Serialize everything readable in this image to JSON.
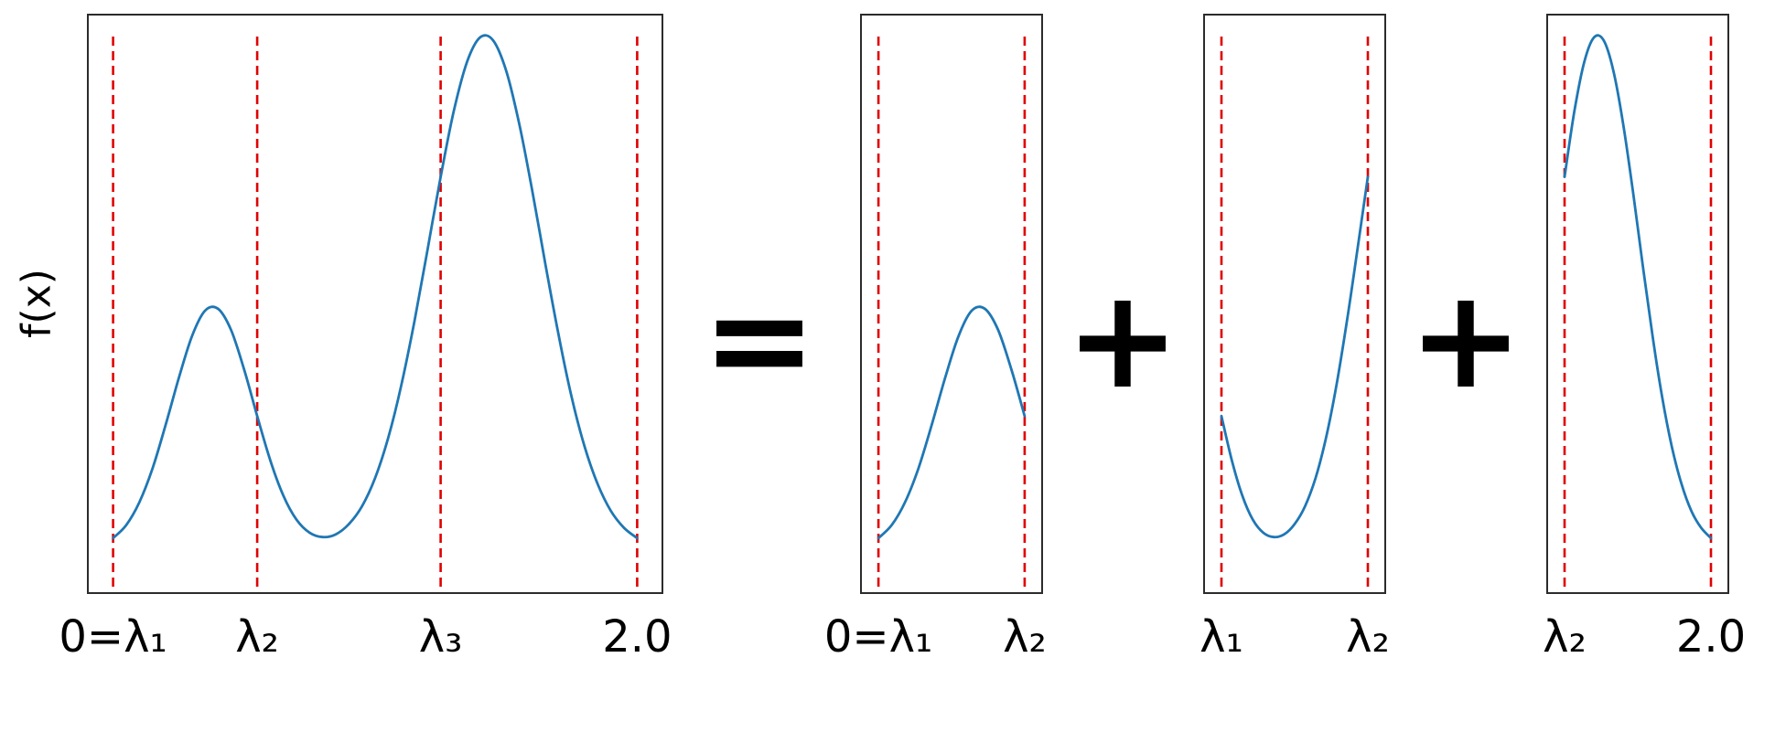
{
  "figure": {
    "ylabel": "f(x)",
    "operators": {
      "equals": "=",
      "plus1": "+",
      "plus2": "+"
    },
    "colors": {
      "curve": "#1f77b4",
      "breakline": "#e00000",
      "frame": "#2b2b2b",
      "background": "#ffffff",
      "text": "#000000"
    }
  },
  "chart_data": [
    {
      "id": "full-function",
      "type": "line",
      "title": "",
      "xlabel": "",
      "ylabel": "f(x)",
      "grid": false,
      "legend": false,
      "xlim": [
        -0.1,
        2.1
      ],
      "ylim": [
        0,
        1.07
      ],
      "line_color": "#1f77b4",
      "breakpoints": [
        0,
        0.55,
        1.25,
        2.0
      ],
      "breakpoint_style": {
        "color": "#e00000",
        "dash": "dashed"
      },
      "xticks": [
        {
          "x": 0,
          "label": "0=λ₁"
        },
        {
          "x": 0.55,
          "label": "λ₂"
        },
        {
          "x": 1.25,
          "label": "λ₃"
        },
        {
          "x": 2.0,
          "label": "2.0"
        }
      ],
      "x": [
        0,
        0.05,
        0.1,
        0.15,
        0.2,
        0.25,
        0.3,
        0.35,
        0.4,
        0.45,
        0.5,
        0.55,
        0.6,
        0.65,
        0.7,
        0.75,
        0.8,
        0.85,
        0.9,
        0.95,
        1,
        1.05,
        1.1,
        1.15,
        1.2,
        1.25,
        1.3,
        1.35,
        1.4,
        1.45,
        1.5,
        1.55,
        1.6,
        1.65,
        1.7,
        1.75,
        1.8,
        1.85,
        1.9,
        1.95,
        2
      ],
      "y": [
        0.103,
        0.127,
        0.169,
        0.231,
        0.311,
        0.397,
        0.474,
        0.522,
        0.526,
        0.487,
        0.414,
        0.328,
        0.246,
        0.181,
        0.137,
        0.113,
        0.105,
        0.11,
        0.129,
        0.162,
        0.214,
        0.288,
        0.385,
        0.503,
        0.635,
        0.769,
        0.89,
        0.98,
        1.026,
        1.021,
        0.965,
        0.867,
        0.743,
        0.608,
        0.478,
        0.363,
        0.271,
        0.202,
        0.153,
        0.122,
        0.103
      ]
    },
    {
      "id": "piece-1",
      "type": "line",
      "title": "",
      "xlabel": "",
      "ylabel": "",
      "grid": false,
      "legend": false,
      "xlim": [
        -0.069,
        0.619
      ],
      "ylim": [
        0,
        1.07
      ],
      "line_color": "#1f77b4",
      "breakpoints": [
        0,
        0.55
      ],
      "breakpoint_style": {
        "color": "#e00000",
        "dash": "dashed"
      },
      "xticks": [
        {
          "x": 0,
          "label": "0=λ₁"
        },
        {
          "x": 0.55,
          "label": "λ₂"
        }
      ],
      "x": [
        0,
        0.05,
        0.1,
        0.15,
        0.2,
        0.25,
        0.3,
        0.35,
        0.4,
        0.45,
        0.5,
        0.55
      ],
      "y": [
        0.103,
        0.127,
        0.169,
        0.231,
        0.311,
        0.397,
        0.474,
        0.522,
        0.526,
        0.487,
        0.414,
        0.328
      ]
    },
    {
      "id": "piece-2",
      "type": "line",
      "title": "",
      "xlabel": "",
      "ylabel": "",
      "grid": false,
      "legend": false,
      "xlim": [
        0.4625,
        1.3375
      ],
      "ylim": [
        0,
        1.07
      ],
      "line_color": "#1f77b4",
      "breakpoints": [
        0.55,
        1.25
      ],
      "breakpoint_style": {
        "color": "#e00000",
        "dash": "dashed"
      },
      "xticks": [
        {
          "x": 0.55,
          "label": "λ₁"
        },
        {
          "x": 1.25,
          "label": "λ₂"
        }
      ],
      "x": [
        0.55,
        0.6,
        0.65,
        0.7,
        0.75,
        0.8,
        0.85,
        0.9,
        0.95,
        1,
        1.05,
        1.1,
        1.15,
        1.2,
        1.25
      ],
      "y": [
        0.328,
        0.246,
        0.181,
        0.137,
        0.113,
        0.105,
        0.11,
        0.129,
        0.162,
        0.214,
        0.288,
        0.385,
        0.503,
        0.635,
        0.769
      ]
    },
    {
      "id": "piece-3",
      "type": "line",
      "title": "",
      "xlabel": "",
      "ylabel": "",
      "grid": false,
      "legend": false,
      "xlim": [
        1.156,
        2.094
      ],
      "ylim": [
        0,
        1.07
      ],
      "line_color": "#1f77b4",
      "breakpoints": [
        1.25,
        2.0
      ],
      "breakpoint_style": {
        "color": "#e00000",
        "dash": "dashed"
      },
      "xticks": [
        {
          "x": 1.25,
          "label": "λ₂"
        },
        {
          "x": 2.0,
          "label": "2.0"
        }
      ],
      "x": [
        1.25,
        1.3,
        1.35,
        1.4,
        1.45,
        1.5,
        1.55,
        1.6,
        1.65,
        1.7,
        1.75,
        1.8,
        1.85,
        1.9,
        1.95,
        2
      ],
      "y": [
        0.769,
        0.89,
        0.98,
        1.026,
        1.021,
        0.965,
        0.867,
        0.743,
        0.608,
        0.478,
        0.363,
        0.271,
        0.202,
        0.153,
        0.122,
        0.103
      ]
    }
  ]
}
